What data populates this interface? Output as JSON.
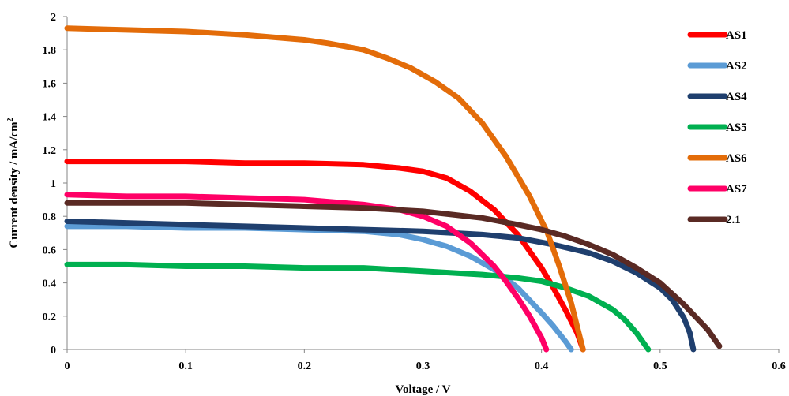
{
  "chart_data": {
    "type": "line",
    "title": "",
    "xlabel": "Voltage / V",
    "ylabel_main": "Current  density / mA/cm",
    "ylabel_sup": "2",
    "xlim": [
      0,
      0.6
    ],
    "ylim": [
      0,
      2
    ],
    "x_ticks": [
      "0",
      "0.1",
      "0.2",
      "0.3",
      "0.4",
      "0.5",
      "0.6"
    ],
    "y_ticks": [
      "0",
      "0.2",
      "0.4",
      "0.6",
      "0.8",
      "1",
      "1.2",
      "1.4",
      "1.6",
      "1.8",
      "2"
    ],
    "grid": false,
    "legend_position": "right",
    "series": [
      {
        "name": "AS1",
        "color": "#ff0000",
        "points": [
          [
            0,
            1.13
          ],
          [
            0.05,
            1.13
          ],
          [
            0.1,
            1.13
          ],
          [
            0.15,
            1.12
          ],
          [
            0.2,
            1.12
          ],
          [
            0.25,
            1.11
          ],
          [
            0.28,
            1.09
          ],
          [
            0.3,
            1.07
          ],
          [
            0.32,
            1.03
          ],
          [
            0.34,
            0.95
          ],
          [
            0.36,
            0.84
          ],
          [
            0.38,
            0.69
          ],
          [
            0.4,
            0.49
          ],
          [
            0.41,
            0.37
          ],
          [
            0.42,
            0.24
          ],
          [
            0.43,
            0.1
          ],
          [
            0.435,
            0
          ]
        ]
      },
      {
        "name": "AS2",
        "color": "#5b9bd5",
        "points": [
          [
            0,
            0.74
          ],
          [
            0.05,
            0.74
          ],
          [
            0.1,
            0.73
          ],
          [
            0.15,
            0.73
          ],
          [
            0.2,
            0.72
          ],
          [
            0.25,
            0.71
          ],
          [
            0.28,
            0.69
          ],
          [
            0.3,
            0.66
          ],
          [
            0.32,
            0.62
          ],
          [
            0.34,
            0.56
          ],
          [
            0.36,
            0.48
          ],
          [
            0.38,
            0.37
          ],
          [
            0.4,
            0.22
          ],
          [
            0.41,
            0.14
          ],
          [
            0.42,
            0.05
          ],
          [
            0.425,
            0
          ]
        ]
      },
      {
        "name": "AS4",
        "color": "#1f3f6e",
        "points": [
          [
            0,
            0.77
          ],
          [
            0.05,
            0.76
          ],
          [
            0.1,
            0.75
          ],
          [
            0.15,
            0.74
          ],
          [
            0.2,
            0.73
          ],
          [
            0.25,
            0.72
          ],
          [
            0.3,
            0.71
          ],
          [
            0.35,
            0.69
          ],
          [
            0.38,
            0.67
          ],
          [
            0.41,
            0.63
          ],
          [
            0.44,
            0.58
          ],
          [
            0.46,
            0.53
          ],
          [
            0.48,
            0.46
          ],
          [
            0.5,
            0.37
          ],
          [
            0.51,
            0.3
          ],
          [
            0.52,
            0.19
          ],
          [
            0.525,
            0.1
          ],
          [
            0.528,
            0
          ]
        ]
      },
      {
        "name": "AS5",
        "color": "#00b050",
        "points": [
          [
            0,
            0.51
          ],
          [
            0.05,
            0.51
          ],
          [
            0.1,
            0.5
          ],
          [
            0.15,
            0.5
          ],
          [
            0.2,
            0.49
          ],
          [
            0.25,
            0.49
          ],
          [
            0.3,
            0.47
          ],
          [
            0.35,
            0.45
          ],
          [
            0.38,
            0.43
          ],
          [
            0.4,
            0.41
          ],
          [
            0.42,
            0.37
          ],
          [
            0.44,
            0.32
          ],
          [
            0.46,
            0.24
          ],
          [
            0.47,
            0.18
          ],
          [
            0.48,
            0.1
          ],
          [
            0.49,
            0
          ]
        ]
      },
      {
        "name": "AS6",
        "color": "#e36c09",
        "points": [
          [
            0,
            1.93
          ],
          [
            0.05,
            1.92
          ],
          [
            0.1,
            1.91
          ],
          [
            0.15,
            1.89
          ],
          [
            0.2,
            1.86
          ],
          [
            0.22,
            1.84
          ],
          [
            0.25,
            1.8
          ],
          [
            0.27,
            1.75
          ],
          [
            0.29,
            1.69
          ],
          [
            0.31,
            1.61
          ],
          [
            0.33,
            1.51
          ],
          [
            0.35,
            1.36
          ],
          [
            0.37,
            1.16
          ],
          [
            0.39,
            0.92
          ],
          [
            0.405,
            0.7
          ],
          [
            0.415,
            0.5
          ],
          [
            0.425,
            0.28
          ],
          [
            0.43,
            0.14
          ],
          [
            0.435,
            0
          ]
        ]
      },
      {
        "name": "AS7",
        "color": "#ff0066",
        "points": [
          [
            0,
            0.93
          ],
          [
            0.05,
            0.92
          ],
          [
            0.1,
            0.92
          ],
          [
            0.15,
            0.91
          ],
          [
            0.2,
            0.9
          ],
          [
            0.25,
            0.87
          ],
          [
            0.28,
            0.84
          ],
          [
            0.3,
            0.8
          ],
          [
            0.32,
            0.74
          ],
          [
            0.34,
            0.64
          ],
          [
            0.36,
            0.5
          ],
          [
            0.37,
            0.41
          ],
          [
            0.38,
            0.31
          ],
          [
            0.39,
            0.2
          ],
          [
            0.4,
            0.07
          ],
          [
            0.404,
            0
          ]
        ]
      },
      {
        "name": "2.1",
        "color": "#5a2a24",
        "points": [
          [
            0,
            0.88
          ],
          [
            0.05,
            0.88
          ],
          [
            0.1,
            0.88
          ],
          [
            0.15,
            0.87
          ],
          [
            0.2,
            0.86
          ],
          [
            0.25,
            0.85
          ],
          [
            0.3,
            0.83
          ],
          [
            0.35,
            0.79
          ],
          [
            0.38,
            0.75
          ],
          [
            0.4,
            0.72
          ],
          [
            0.42,
            0.68
          ],
          [
            0.44,
            0.63
          ],
          [
            0.46,
            0.57
          ],
          [
            0.48,
            0.49
          ],
          [
            0.5,
            0.4
          ],
          [
            0.52,
            0.27
          ],
          [
            0.54,
            0.12
          ],
          [
            0.55,
            0.02
          ]
        ]
      }
    ]
  }
}
